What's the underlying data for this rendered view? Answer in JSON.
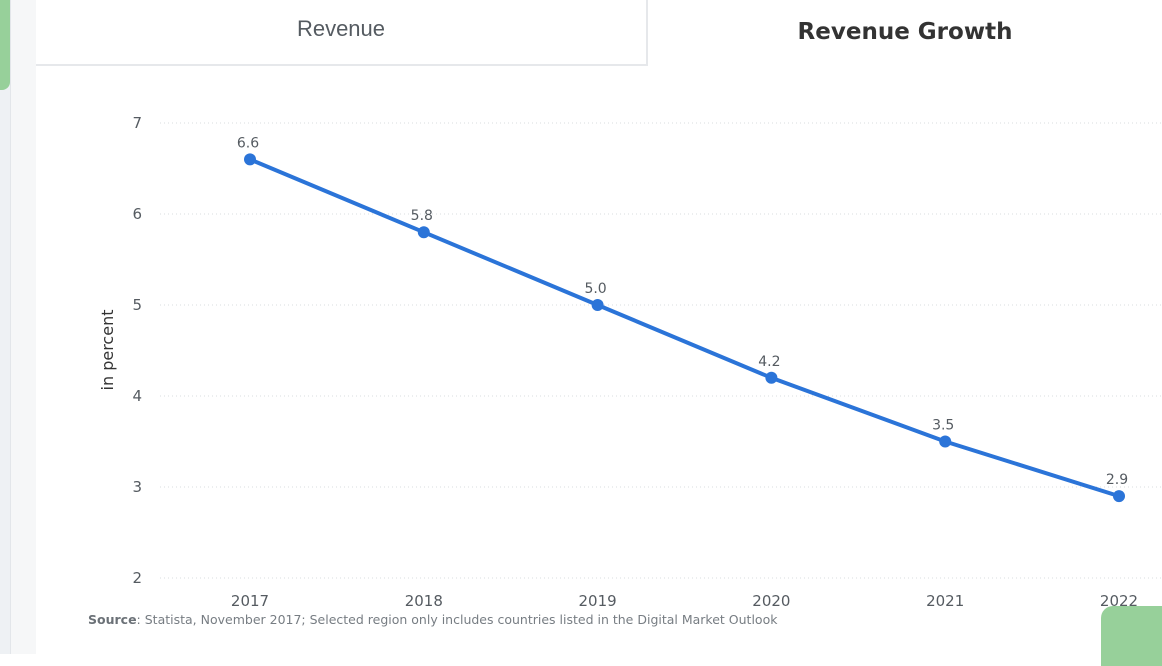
{
  "tabs": {
    "revenue_label": "Revenue",
    "growth_label": "Revenue Growth"
  },
  "source": {
    "prefix": "Source",
    "text": ": Statista, November 2017; Selected region only includes countries listed in the Digital Market Outlook"
  },
  "colors": {
    "series": "#2b74d8",
    "grid": "#d9dcdf",
    "accent_green": "#97d09a"
  },
  "chart_data": {
    "type": "line",
    "x": [
      "2017",
      "2018",
      "2019",
      "2020",
      "2021",
      "2022"
    ],
    "series": [
      {
        "values": [
          6.6,
          5.8,
          5.0,
          4.2,
          3.5,
          2.9
        ],
        "labels": [
          "6.6",
          "5.8",
          "5.0",
          "4.2",
          "3.5",
          "2.9"
        ]
      }
    ],
    "ylabel": "in percent",
    "ylim": [
      2,
      7
    ],
    "yticks": [
      2,
      3,
      4,
      5,
      6,
      7
    ],
    "grid": true,
    "grid_style": "dotted",
    "data_labels": true
  }
}
